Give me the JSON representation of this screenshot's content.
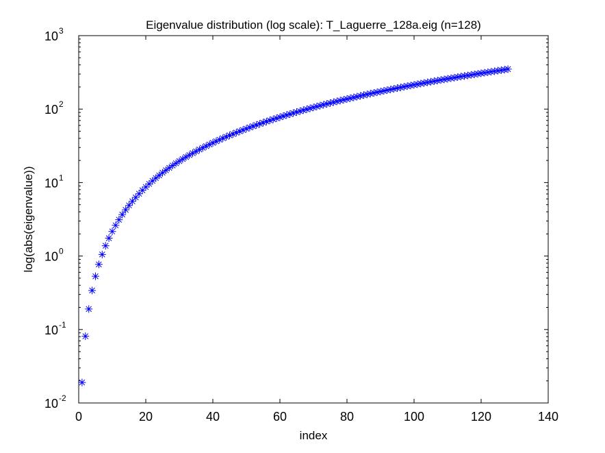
{
  "chart_data": {
    "type": "scatter",
    "title": "Eigenvalue distribution (log scale): T_Laguerre_128a.eig (n=128)",
    "xlabel": "index",
    "ylabel": "log(abs(eigenvalue))",
    "xlim": [
      0,
      140
    ],
    "ylim": [
      0.01,
      1000
    ],
    "yscale": "log",
    "grid": false,
    "marker": "asterisk",
    "x_ticks": [
      "0",
      "20",
      "40",
      "60",
      "80",
      "100",
      "120",
      "140"
    ],
    "y_ticks": [
      {
        "base": "10",
        "exp": "-2"
      },
      {
        "base": "10",
        "exp": "-1"
      },
      {
        "base": "10",
        "exp": "0"
      },
      {
        "base": "10",
        "exp": "1"
      },
      {
        "base": "10",
        "exp": "2"
      },
      {
        "base": "10",
        "exp": "3"
      }
    ],
    "series": [
      {
        "color": "#0000ff",
        "x_start": 1,
        "x_step": 1,
        "values": [
          0.019,
          0.081,
          0.19,
          0.34,
          0.53,
          0.77,
          1.05,
          1.38,
          1.75,
          2.16,
          2.62,
          3.12,
          3.67,
          4.26,
          4.89,
          5.56,
          6.28,
          7.04,
          7.85,
          8.7,
          9.59,
          10.53,
          11.51,
          12.53,
          13.6,
          14.71,
          15.86,
          17.06,
          18.29,
          19.58,
          20.9,
          22.27,
          23.68,
          25.13,
          26.62,
          28.16,
          29.74,
          31.36,
          33.02,
          34.73,
          36.48,
          38.27,
          40.1,
          41.98,
          43.89,
          45.85,
          47.85,
          49.9,
          51.98,
          54.11,
          56.28,
          58.49,
          60.75,
          63.04,
          65.38,
          67.76,
          70.18,
          72.65,
          75.15,
          77.7,
          80.29,
          82.92,
          85.59,
          88.31,
          91.06,
          93.86,
          96.7,
          99.58,
          102.5,
          105.46,
          108.47,
          111.52,
          114.61,
          117.74,
          120.91,
          124.12,
          127.38,
          130.68,
          134.02,
          137.41,
          140.83,
          144.3,
          147.81,
          151.36,
          154.95,
          158.59,
          162.27,
          165.99,
          169.75,
          173.55,
          177.4,
          181.29,
          185.22,
          189.19,
          193.21,
          197.27,
          201.37,
          205.51,
          209.69,
          213.92,
          218.19,
          222.5,
          226.86,
          231.25,
          235.69,
          240.17,
          244.7,
          249.26,
          253.87,
          258.52,
          263.21,
          267.95,
          272.73,
          277.55,
          282.41,
          287.31,
          292.26,
          297.25,
          302.28,
          307.36,
          312.48,
          317.64,
          322.84,
          328.08,
          333.37,
          338.7,
          344.07,
          350
        ]
      }
    ]
  }
}
